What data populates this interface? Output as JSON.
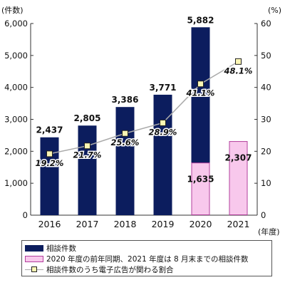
{
  "chart_data": {
    "type": "bar",
    "categories": [
      "2016",
      "2017",
      "2018",
      "2019",
      "2020",
      "2021"
    ],
    "left_axis": {
      "unit_label": "(件数)",
      "ticks": [
        "0",
        "1,000",
        "2,000",
        "3,000",
        "4,000",
        "5,000",
        "6,000"
      ],
      "ylim": [
        0,
        6000
      ]
    },
    "right_axis": {
      "unit_label": "(%)",
      "ticks": [
        "0",
        "10",
        "20",
        "30",
        "40",
        "50",
        "60"
      ],
      "ylim": [
        0,
        60
      ]
    },
    "x_unit_label": "(年度)",
    "series": [
      {
        "name": "相談件数",
        "kind": "bar",
        "color": "#0c1d5e",
        "values": [
          2437,
          2805,
          3386,
          3771,
          5882,
          null
        ],
        "labels": [
          "2,437",
          "2,805",
          "3,386",
          "3,771",
          "5,882",
          ""
        ]
      },
      {
        "name": "2020 年度の前年同期、2021 年度は 8 月末までの相談件数",
        "kind": "bar",
        "color": "#f8c8ec",
        "border": "#b23f9c",
        "values": [
          null,
          null,
          null,
          null,
          1635,
          2307
        ],
        "labels": [
          "",
          "",
          "",
          "",
          "1,635",
          "2,307"
        ]
      },
      {
        "name": "相談件数のうち電子広告が関わる割合",
        "kind": "line",
        "color": "#aaaaaa",
        "marker_fill": "#fbf6b4",
        "values": [
          19.2,
          21.7,
          25.6,
          28.9,
          41.1,
          48.1
        ],
        "labels": [
          "19.2%",
          "21.7%",
          "25.6%",
          "28.9%",
          "41.1%",
          "48.1%"
        ]
      }
    ],
    "grid": false,
    "legend_position": "bottom"
  }
}
